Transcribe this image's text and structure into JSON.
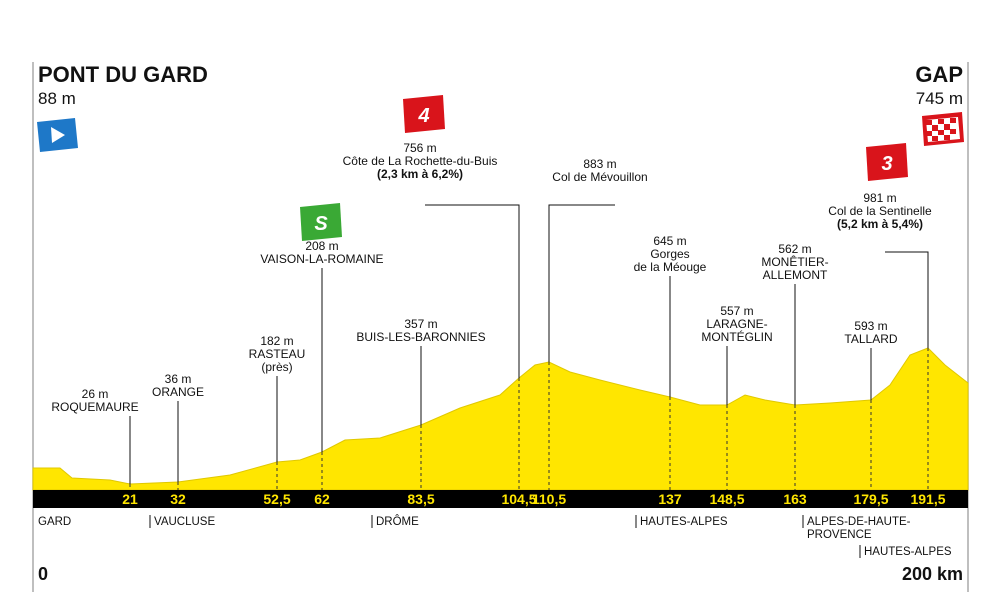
{
  "start": {
    "name": "PONT DU GARD",
    "altitude": "88 m"
  },
  "finish": {
    "name": "GAP",
    "altitude": "745 m"
  },
  "waypoints": [
    {
      "altitude": "26 m",
      "label": [
        "ROQUEMAURE"
      ],
      "km": "21"
    },
    {
      "altitude": "36 m",
      "label": [
        "ORANGE"
      ],
      "km": "32"
    },
    {
      "altitude": "182 m",
      "label": [
        "RASTEAU",
        "(près)"
      ],
      "km": "52,5"
    },
    {
      "altitude": "208 m",
      "label": [
        "VAISON-LA-ROMAINE"
      ],
      "km": "62",
      "badge": "S"
    },
    {
      "altitude": "357 m",
      "label": [
        "BUIS-LES-BARONNIES"
      ],
      "km": "83,5"
    },
    {
      "altitude": "756 m",
      "label": [
        "Côte de La Rochette-du-Buis",
        "(2,3 km à 6,2%)"
      ],
      "km": "104,5",
      "badge": "4"
    },
    {
      "altitude": "883 m",
      "label": [
        "Col de Mévouillon"
      ],
      "km": "110,5"
    },
    {
      "altitude": "645 m",
      "label": [
        "Gorges",
        "de la Méouge"
      ],
      "km": "137"
    },
    {
      "altitude": "557 m",
      "label": [
        "LARAGNE-",
        "MONTÉGLIN"
      ],
      "km": "148,5"
    },
    {
      "altitude": "562 m",
      "label": [
        "MONÊTIER-",
        "ALLEMONT"
      ],
      "km": "163"
    },
    {
      "altitude": "593 m",
      "label": [
        "TALLARD"
      ],
      "km": "179,5"
    },
    {
      "altitude": "981 m",
      "label": [
        "Col de la Sentinelle",
        "(5,2 km à 5,4%)"
      ],
      "km": "191,5",
      "badge": "3"
    }
  ],
  "departments": [
    [
      "GARD"
    ],
    [
      "VAUCLUSE"
    ],
    [
      "DRÔME"
    ],
    [
      "HAUTES-ALPES"
    ],
    [
      "ALPES-DE-HAUTE-",
      "PROVENCE"
    ],
    [
      "HAUTES-ALPES"
    ]
  ],
  "distance": {
    "start": "0",
    "end": "200 km"
  }
}
